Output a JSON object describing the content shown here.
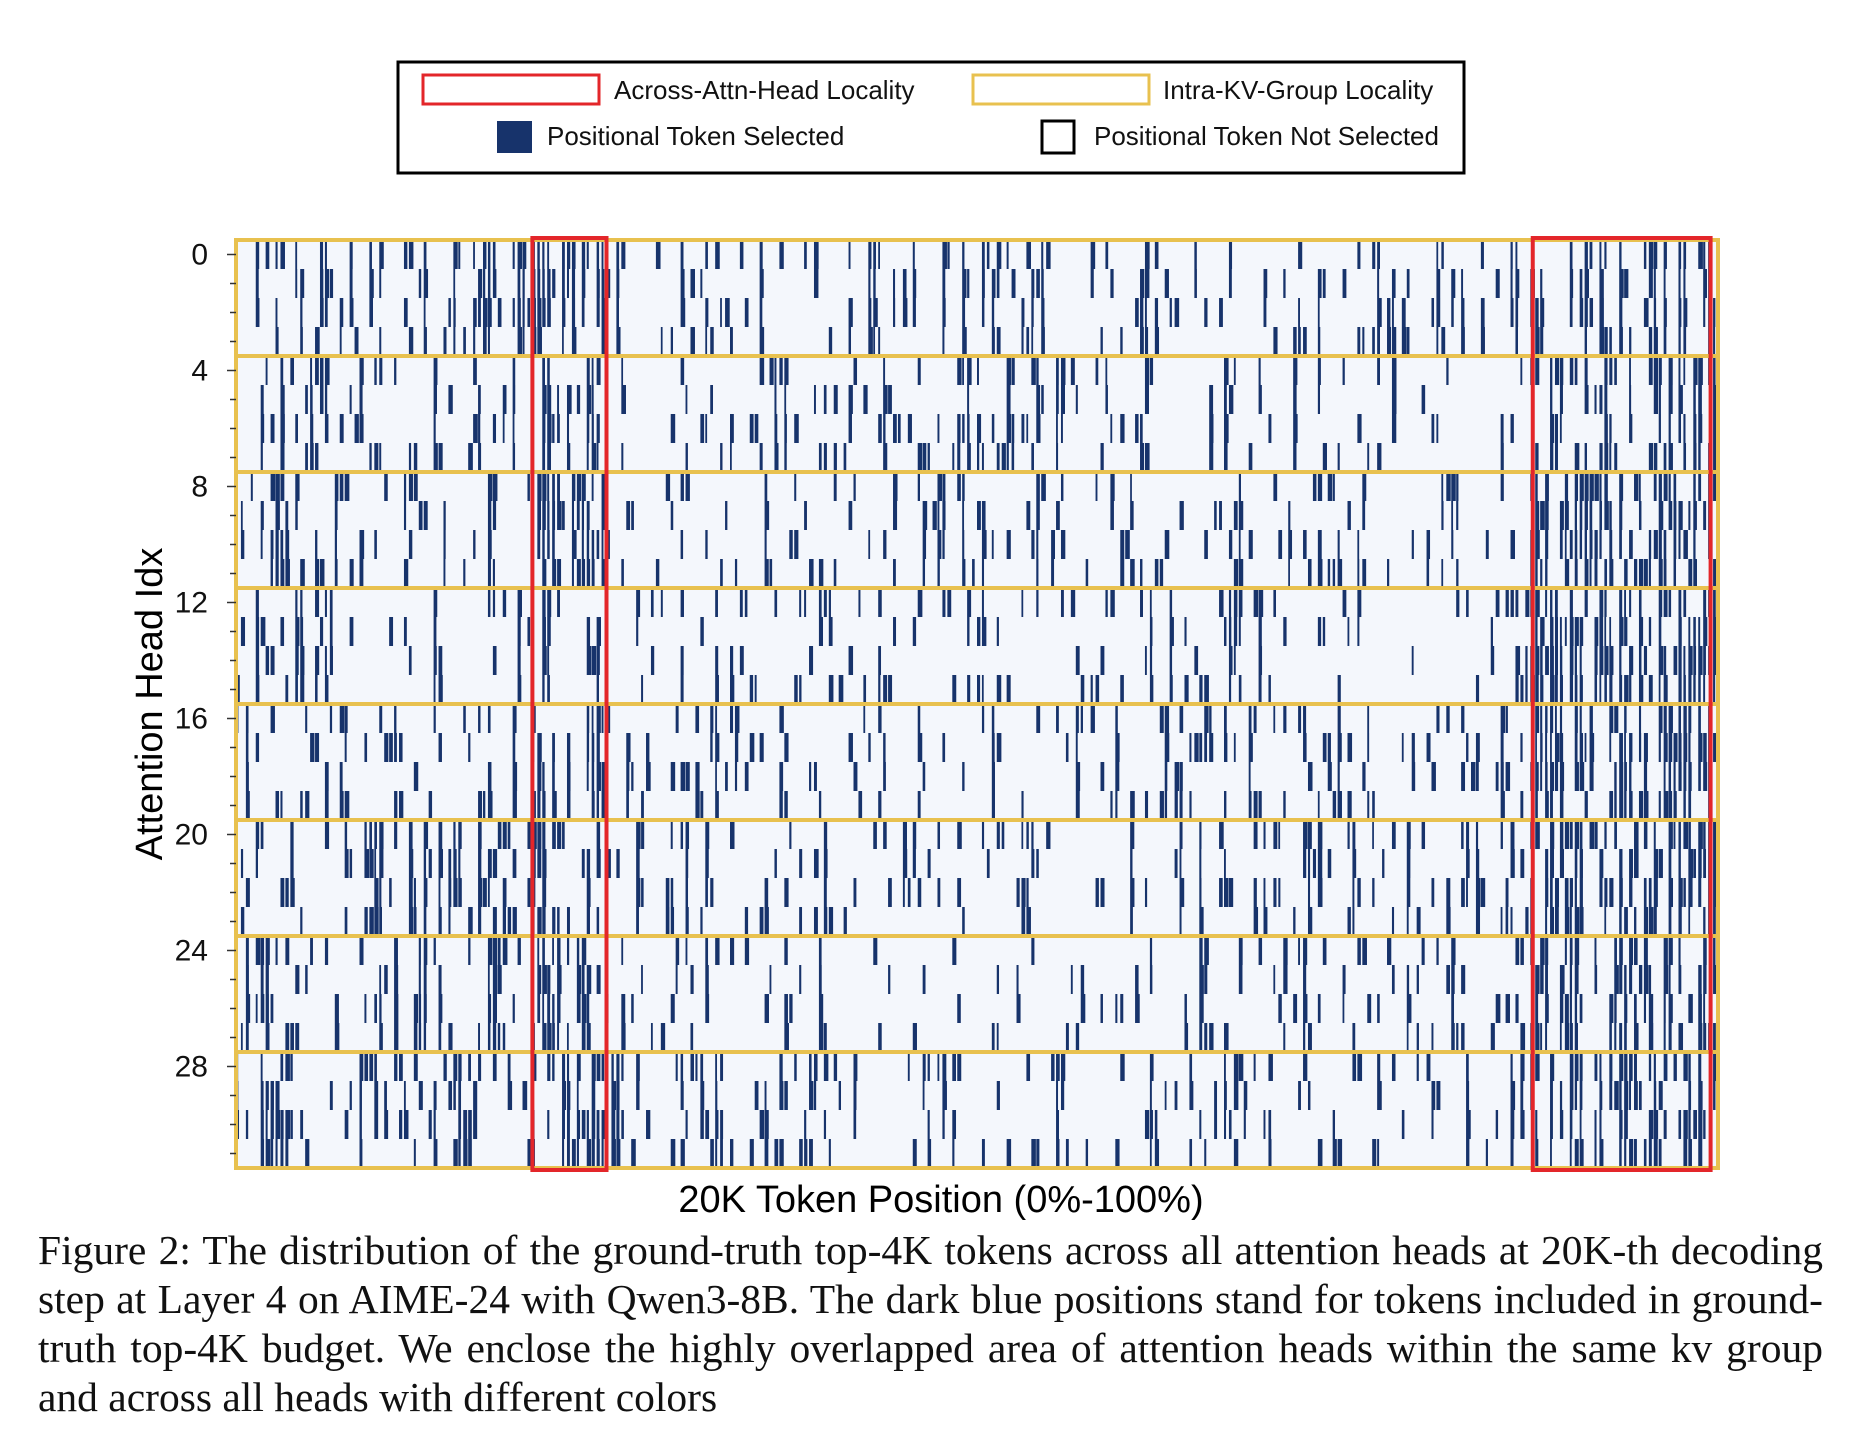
{
  "legend": {
    "items": [
      {
        "label": "Across-Attn-Head Locality",
        "swatch": "outline",
        "color": "#e3262a"
      },
      {
        "label": "Intra-KV-Group Locality",
        "swatch": "outline",
        "color": "#e8c14f"
      },
      {
        "label": "Positional Token Selected",
        "swatch": "filled",
        "color": "#17336b"
      },
      {
        "label": "Positional Token Not Selected",
        "swatch": "empty",
        "color": "#000000"
      }
    ]
  },
  "chart_data": {
    "type": "heatmap",
    "title": "",
    "xlabel": "20K Token Position (0%-100%)",
    "ylabel": "Attention Head Idx",
    "y_ticks": [
      "0",
      "4",
      "8",
      "12",
      "16",
      "20",
      "24",
      "28"
    ],
    "num_heads": 32,
    "heads_per_kv_group": 4,
    "colors": {
      "selected": "#17336b",
      "not_selected": "#f4f7fc",
      "kv_group_box": "#e8c14f",
      "across_head_box": "#e3262a"
    },
    "across_head_regions_pct": [
      [
        20,
        25
      ],
      [
        87.5,
        99.5
      ]
    ]
  },
  "caption": {
    "text": "Figure 2: The distribution of the ground-truth top-4K tokens across all attention heads at 20K-th decoding step at Layer 4 on AIME-24 with Qwen3-8B. The dark blue positions stand for tokens included in ground-truth top-4K budget. We enclose the highly overlapped area of attention heads within the same kv group and across all heads with different colors"
  }
}
